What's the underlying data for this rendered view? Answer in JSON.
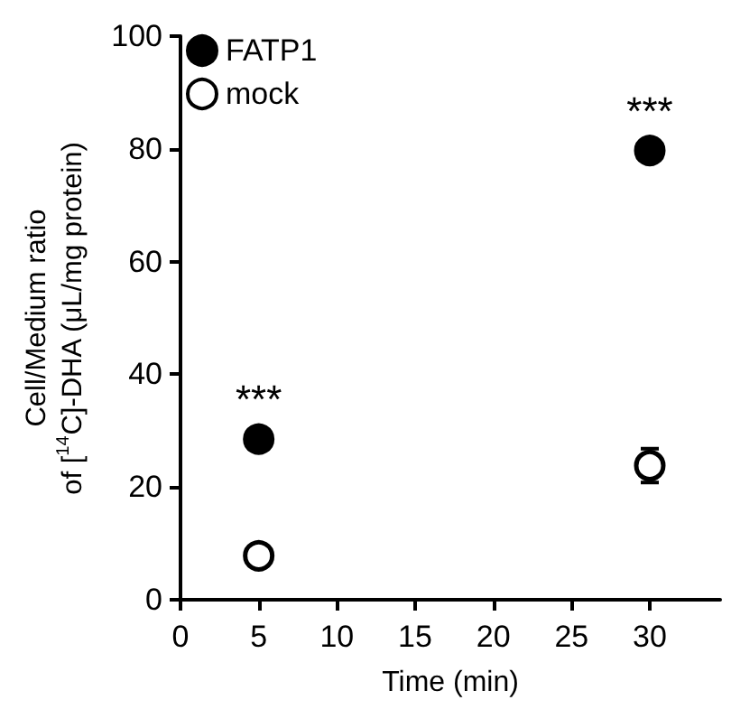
{
  "chart_data": {
    "type": "scatter",
    "xlabel": "Time (min)",
    "ylabel": "Cell/Medium ratio\nof [$^{14}$C]-DHA (μL/mg protein)",
    "x": [
      5,
      30
    ],
    "series": [
      {
        "name": "FATP1",
        "color": "#000000",
        "values": [
          28.5,
          79.7
        ]
      },
      {
        "name": "mock",
        "color": "#ffffff",
        "values": [
          7.8,
          23.8
        ],
        "errors": [
          null,
          3
        ]
      }
    ],
    "xlim": [
      0,
      34.5
    ],
    "xticks": [
      0,
      5,
      10,
      15,
      20,
      25,
      30
    ],
    "ylim": [
      0,
      100
    ],
    "yticks": [
      0,
      20,
      40,
      60,
      80,
      100
    ],
    "annotations": [
      {
        "text": "***",
        "x": 5,
        "y": 28.5
      },
      {
        "text": "***",
        "x": 30,
        "y": 79.7
      }
    ],
    "marker": "circle",
    "grid": false,
    "legend": "top left"
  }
}
